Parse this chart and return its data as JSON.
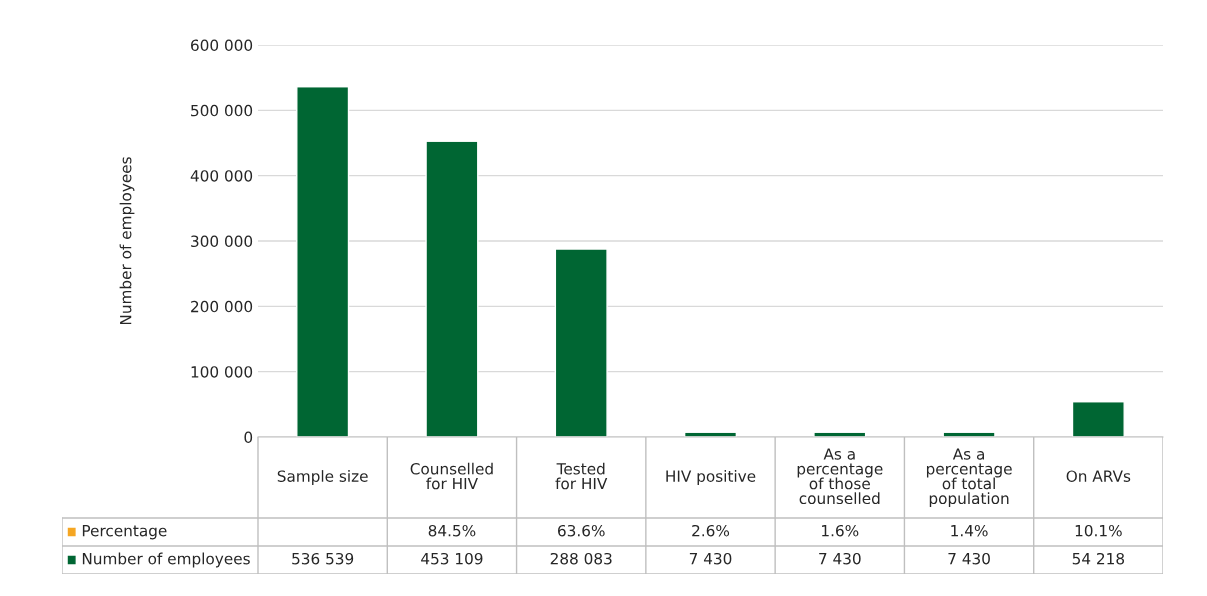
{
  "chart_data": {
    "type": "bar",
    "stacked": true,
    "ylabel": "Number of employees",
    "categories": [
      "Sample size",
      "Counselled\nfor HIV",
      "Tested\nfor HIV",
      "HIV positive",
      "As a\npercentage\nof those\ncounselled",
      "As a\npercentage\nof total\npopulation",
      "On ARVs"
    ],
    "series": [
      {
        "name": "Number of employees",
        "color": "#006633",
        "values": [
          536539,
          453109,
          288083,
          7430,
          7430,
          7430,
          54218
        ],
        "value_labels": [
          "536 539",
          "453 109",
          "288 083",
          "7 430",
          "7 430",
          "7 430",
          "54 218"
        ]
      },
      {
        "name": "Percentage",
        "color": "#f5a623",
        "values": [
          null,
          84.5,
          63.6,
          2.6,
          1.6,
          1.4,
          10.1
        ],
        "value_labels": [
          null,
          "84.5%",
          "63.6%",
          "2.6%",
          "1.6%",
          "1.4%",
          "10.1%"
        ]
      }
    ],
    "ylim": [
      0,
      600000
    ],
    "yticks": [
      0,
      {
        "value": 100000,
        "label": "100 000"
      },
      {
        "value": 200000,
        "label": "200 000"
      },
      {
        "value": 300000,
        "label": "300 000"
      },
      {
        "value": 400000,
        "label": "400 000"
      },
      {
        "value": 500000,
        "label": "500 000"
      },
      {
        "value": 600000,
        "label": "600 000"
      }
    ],
    "grid": "y",
    "legend": "bottom"
  }
}
